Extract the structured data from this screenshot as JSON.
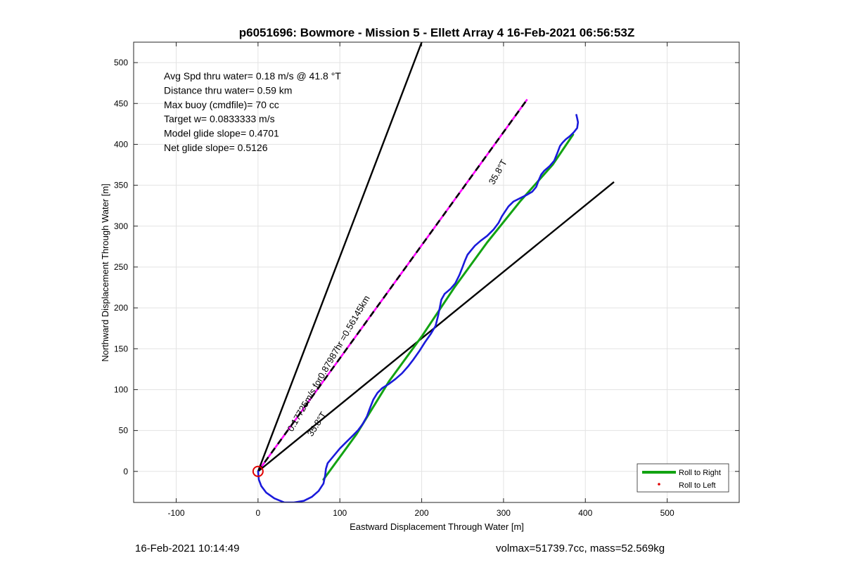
{
  "figure": {
    "footer_left": "16-Feb-2021 10:14:49",
    "footer_right": "volmax=51739.7cc, mass=52.569kg"
  },
  "chart_data": {
    "type": "line",
    "title": "p6051696: Bowmore - Mission 5 - Ellett Array 4 16-Feb-2021 06:56:53Z",
    "xlabel": "Eastward Displacement Through Water [m]",
    "ylabel": "Northward Displacement Through Water [m]",
    "xlim": [
      -152,
      588
    ],
    "ylim": [
      -38,
      525
    ],
    "xticks": [
      -100,
      0,
      100,
      200,
      300,
      400,
      500
    ],
    "yticks": [
      0,
      50,
      100,
      150,
      200,
      250,
      300,
      350,
      400,
      450,
      500
    ],
    "grid": true,
    "info_lines": [
      "Avg Spd thru water=  0.18 m/s @  41.8 °T",
      "Distance thru water=  0.59 km",
      "Max buoy (cmdfile)= 70 cc",
      "Target w= 0.0833333 m/s",
      "Model glide slope= 0.4701",
      "Net glide slope= 0.5126"
    ],
    "legend": {
      "placement": "bottom-right",
      "entries": [
        "Roll to Right",
        "Roll to Left"
      ]
    },
    "colors": {
      "track": "#1a1adb",
      "roll_right": "#12a312",
      "roll_left": "#e00000",
      "heading": "#ff00ff",
      "lines": "#000000",
      "start_marker": "#e00000"
    },
    "series": [
      {
        "name": "Roll to Right",
        "role": "roll_right",
        "x": [
          80,
          120,
          160,
          200,
          240,
          280,
          320,
          360,
          385
        ],
        "y": [
          -10,
          45,
          110,
          165,
          225,
          280,
          330,
          375,
          412
        ]
      },
      {
        "role": "track",
        "x": [
          0,
          1,
          4,
          10,
          20,
          32,
          44,
          56,
          66,
          74,
          80,
          82,
          83,
          85,
          90,
          95,
          100,
          107,
          115,
          122,
          128,
          133,
          137,
          141,
          146,
          152,
          160,
          168,
          176,
          183,
          190,
          197,
          204,
          211,
          217,
          220,
          222,
          224,
          228,
          235,
          241,
          246,
          250,
          253,
          256,
          260,
          265,
          272,
          280,
          288,
          294,
          298,
          302,
          306,
          312,
          320,
          328,
          335,
          340,
          343,
          346,
          350,
          356,
          362,
          366,
          369,
          372,
          376,
          381,
          386,
          390,
          391,
          390,
          389
        ],
        "y": [
          0,
          -10,
          -18,
          -26,
          -33,
          -38,
          -38,
          -36,
          -31,
          -24,
          -15,
          -5,
          3,
          10,
          16,
          22,
          28,
          35,
          43,
          50,
          58,
          67,
          78,
          88,
          96,
          102,
          107,
          113,
          120,
          128,
          137,
          147,
          158,
          168,
          178,
          190,
          200,
          210,
          217,
          223,
          230,
          240,
          250,
          258,
          265,
          270,
          276,
          282,
          288,
          296,
          304,
          312,
          318,
          324,
          330,
          334,
          338,
          342,
          348,
          356,
          363,
          368,
          373,
          380,
          390,
          398,
          402,
          406,
          410,
          415,
          420,
          427,
          432,
          436
        ]
      }
    ],
    "lines": [
      {
        "role": "bound",
        "x": [
          0,
          200
        ],
        "y": [
          0,
          525
        ]
      },
      {
        "role": "bound",
        "x": [
          0,
          435
        ],
        "y": [
          0,
          354
        ]
      },
      {
        "role": "heading",
        "x": [
          0,
          329
        ],
        "y": [
          0,
          455
        ]
      }
    ],
    "annotations": [
      {
        "text": "35.8°T",
        "x": 288,
        "y": 350,
        "angle": -60
      },
      {
        "text": "0.17725m/s for0.87987hr =0.56145km",
        "x": 42,
        "y": 48,
        "angle": -60
      },
      {
        "text": "35.8°T",
        "x": 66,
        "y": 42,
        "angle": -57
      }
    ]
  }
}
